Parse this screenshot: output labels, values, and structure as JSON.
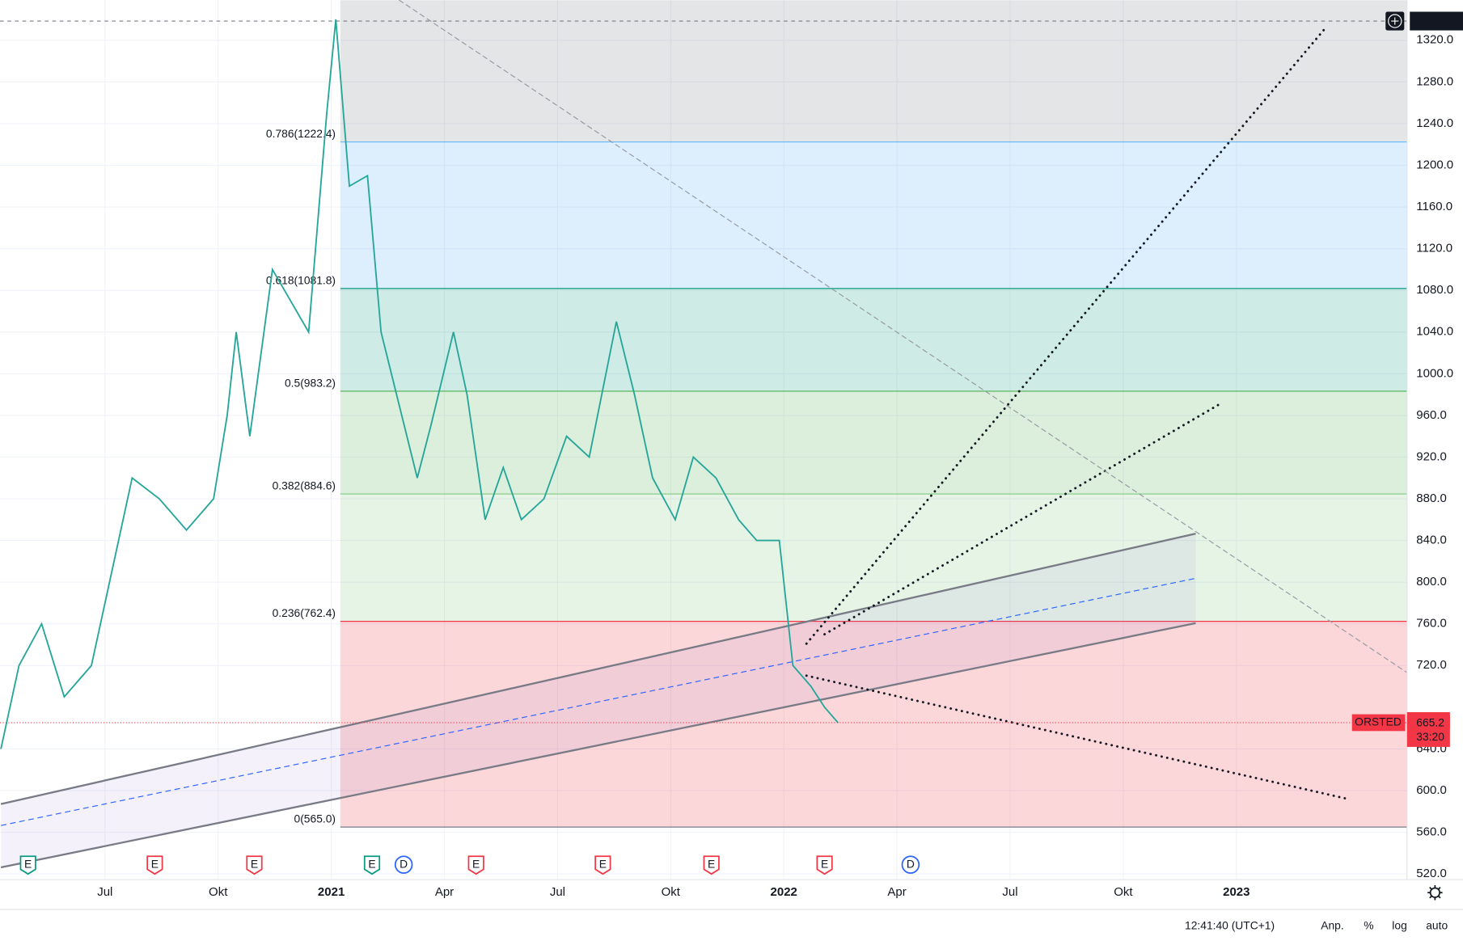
{
  "chart_data": {
    "type": "line",
    "xlim": [
      2020.268,
      2023.377
    ],
    "ylim": [
      514.6,
      1358.5
    ],
    "grid": true,
    "xticks": [
      {
        "value": 2020.5,
        "label": "Jul"
      },
      {
        "value": 2020.75,
        "label": "Okt"
      },
      {
        "value": 2021,
        "label": "2021"
      },
      {
        "value": 2021.25,
        "label": "Apr"
      },
      {
        "value": 2021.5,
        "label": "Jul"
      },
      {
        "value": 2021.75,
        "label": "Okt"
      },
      {
        "value": 2022,
        "label": "2022"
      },
      {
        "value": 2022.25,
        "label": "Apr"
      },
      {
        "value": 2022.5,
        "label": "Jul"
      },
      {
        "value": 2022.75,
        "label": "Okt"
      },
      {
        "value": 2023,
        "label": "2023"
      }
    ],
    "yticks": [
      {
        "value": 520,
        "label": "520.0"
      },
      {
        "value": 560,
        "label": "560.0"
      },
      {
        "value": 600,
        "label": "600.0"
      },
      {
        "value": 640,
        "label": "640.0"
      },
      {
        "value": 720,
        "label": "720.0"
      },
      {
        "value": 760,
        "label": "760.0"
      },
      {
        "value": 800,
        "label": "800.0"
      },
      {
        "value": 840,
        "label": "840.0"
      },
      {
        "value": 880,
        "label": "880.0"
      },
      {
        "value": 920,
        "label": "920.0"
      },
      {
        "value": 960,
        "label": "960.0"
      },
      {
        "value": 1000,
        "label": "1000.0"
      },
      {
        "value": 1040,
        "label": "1040.0"
      },
      {
        "value": 1080,
        "label": "1080.0"
      },
      {
        "value": 1120,
        "label": "1120.0"
      },
      {
        "value": 1160,
        "label": "1160.0"
      },
      {
        "value": 1200,
        "label": "1200.0"
      },
      {
        "value": 1240,
        "label": "1240.0"
      },
      {
        "value": 1280,
        "label": "1280.0"
      },
      {
        "value": 1320,
        "label": "1320.0"
      }
    ],
    "series": [
      {
        "color": "#26a69a",
        "x": [
          2020.27,
          2020.31,
          2020.36,
          2020.41,
          2020.47,
          2020.52,
          2020.56,
          2020.62,
          2020.68,
          2020.74,
          2020.77,
          2020.79,
          2020.82,
          2020.87,
          2020.91,
          2020.95,
          2020.99,
          2021.01,
          2021.04,
          2021.08,
          2021.11,
          2021.15,
          2021.19,
          2021.22,
          2021.27,
          2021.3,
          2021.34,
          2021.38,
          2021.42,
          2021.47,
          2021.52,
          2021.57,
          2021.63,
          2021.67,
          2021.71,
          2021.76,
          2021.8,
          2021.85,
          2021.9,
          2021.94,
          2021.99,
          2022.02,
          2022.06,
          2022.09,
          2022.12
        ],
        "values": [
          640,
          720,
          760,
          690,
          720,
          820,
          900,
          880,
          850,
          880,
          960,
          1040,
          940,
          1100,
          1070,
          1040,
          1250,
          1340,
          1180,
          1190,
          1040,
          970,
          900,
          950,
          1040,
          980,
          860,
          910,
          860,
          880,
          940,
          920,
          1050,
          980,
          900,
          860,
          920,
          900,
          860,
          840,
          840,
          720,
          700,
          680,
          665
        ]
      }
    ],
    "fib_start": 2021.02,
    "fib_levels": [
      {
        "value": 565.0,
        "label": "0(565.0)",
        "color": "#787b86",
        "fill": "rgba(242,54,69,0.2)"
      },
      {
        "value": 762.4,
        "label": "0.236(762.4)",
        "color": "#f23645",
        "fill": "rgba(76,175,80,0.14)"
      },
      {
        "value": 884.6,
        "label": "0.382(884.6)",
        "color": "#81c784",
        "fill": "rgba(76,175,80,0.2)"
      },
      {
        "value": 983.2,
        "label": "0.5(983.2)",
        "color": "#4caf50",
        "fill": "rgba(8,153,129,0.2)"
      },
      {
        "value": 1081.8,
        "label": "0.618(1081.8)",
        "color": "#089981",
        "fill": "rgba(100,181,246,0.22)"
      },
      {
        "value": 1222.4,
        "label": "0.786(1222.4)",
        "color": "#64b5f6",
        "fill": "rgba(120,123,134,0.2)"
      }
    ],
    "channel": {
      "x": [
        2020.27,
        2022.91
      ],
      "upper": [
        587.1,
        846.6
      ],
      "middle": [
        566.5,
        803.7
      ],
      "lower": [
        526.3,
        760.7
      ]
    },
    "trend_lines": [
      {
        "x": [
          2022.05,
          2023.2
        ],
        "y": [
          741.0,
          1333.4
        ],
        "color": "#131722",
        "style": "dotted"
      },
      {
        "x": [
          2022.09,
          2022.96
        ],
        "y": [
          750.0,
          970.1
        ],
        "color": "#131722",
        "style": "dotted"
      },
      {
        "x": [
          2022.05,
          2023.25
        ],
        "y": [
          710.3,
          591.6
        ],
        "color": "#131722",
        "style": "dotted"
      },
      {
        "x": [
          2021.15,
          2023.38
        ],
        "y": [
          1358.5,
          712.4
        ],
        "color": "#9598a1",
        "style": "dashed"
      }
    ],
    "events": [
      {
        "x": 2020.33,
        "label": "E",
        "color": "#089981"
      },
      {
        "x": 2020.61,
        "label": "E",
        "color": "#f23645"
      },
      {
        "x": 2020.83,
        "label": "E",
        "color": "#f23645"
      },
      {
        "x": 2021.09,
        "label": "E",
        "color": "#089981"
      },
      {
        "x": 2021.16,
        "label": "D",
        "color": "#2962ff"
      },
      {
        "x": 2021.32,
        "label": "E",
        "color": "#f23645"
      },
      {
        "x": 2021.6,
        "label": "E",
        "color": "#f23645"
      },
      {
        "x": 2021.84,
        "label": "E",
        "color": "#f23645"
      },
      {
        "x": 2022.09,
        "label": "E",
        "color": "#f23645"
      },
      {
        "x": 2022.28,
        "label": "D",
        "color": "#2962ff"
      }
    ],
    "crosshair": 1338.4,
    "other_price": 667.2,
    "last_price": {
      "symbol": "ORSTED",
      "value": 665.2,
      "countdown": "33:20"
    },
    "status_bar": {
      "time": "12:41:40 (UTC+1)",
      "buttons": [
        "Anp.",
        "%",
        "log",
        "auto"
      ]
    }
  }
}
